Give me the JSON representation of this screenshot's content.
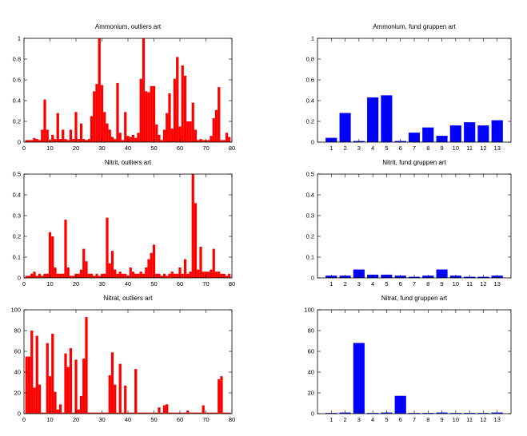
{
  "colors": {
    "outliers": "#ff0000",
    "groups": "#0000ff",
    "axis": "#000000",
    "background": "#ffffff"
  },
  "chart_data": [
    {
      "type": "bar",
      "title": "Ammonium, outliers art",
      "color": "#ff0000",
      "xlim": [
        0,
        80
      ],
      "ylim": [
        0,
        1
      ],
      "xticks": [
        0,
        10,
        20,
        30,
        40,
        50,
        60,
        70,
        80
      ],
      "yticks": [
        0,
        0.2,
        0.4,
        0.6,
        0.8,
        1
      ],
      "yticklabels": [
        "0",
        "0.2",
        "0.4",
        "0.6",
        "0.8",
        "1"
      ],
      "x": [
        1,
        2,
        3,
        4,
        5,
        6,
        7,
        8,
        9,
        10,
        11,
        12,
        13,
        14,
        15,
        16,
        17,
        18,
        19,
        20,
        21,
        22,
        23,
        24,
        25,
        26,
        27,
        28,
        29,
        30,
        31,
        32,
        33,
        34,
        35,
        36,
        37,
        38,
        39,
        40,
        41,
        42,
        43,
        44,
        45,
        46,
        47,
        48,
        49,
        50,
        51,
        52,
        53,
        54,
        55,
        56,
        57,
        58,
        59,
        60,
        61,
        62,
        63,
        64,
        65,
        66,
        67,
        68,
        69,
        70,
        71,
        72,
        73,
        74,
        75,
        76,
        77,
        78,
        79
      ],
      "values": [
        0.02,
        0.02,
        0.02,
        0.04,
        0.03,
        0.02,
        0.12,
        0.41,
        0.12,
        0.02,
        0.07,
        0.03,
        0.28,
        0.03,
        0.12,
        0.03,
        0.02,
        0.12,
        0.03,
        0.29,
        0.03,
        0.18,
        0.03,
        0.02,
        0.03,
        0.25,
        0.49,
        0.56,
        1.0,
        0.55,
        0.29,
        0.18,
        0.12,
        0.05,
        0.03,
        0.57,
        0.09,
        0.02,
        0.29,
        0.06,
        0.05,
        0.07,
        0.04,
        0.09,
        0.61,
        1.0,
        0.49,
        0.48,
        0.54,
        0.54,
        0.17,
        0.07,
        0.02,
        0.12,
        0.28,
        0.47,
        0.13,
        0.61,
        0.82,
        0.15,
        0.74,
        0.64,
        0.2,
        0.2,
        0.38,
        0.12,
        0.02,
        0.03,
        0.02,
        0.02,
        0.02,
        0.06,
        0.23,
        0.31,
        0.53,
        0.02,
        0.02,
        0.09,
        0.05
      ]
    },
    {
      "type": "bar",
      "title": "Ammonium, fund gruppen art",
      "color": "#0000ff",
      "categories": [
        "1",
        "2",
        "3",
        "4",
        "5",
        "6",
        "7",
        "8",
        "9",
        "10",
        "11",
        "12",
        "13"
      ],
      "xlim": [
        0,
        14
      ],
      "ylim": [
        0,
        1
      ],
      "yticks": [
        0,
        0.2,
        0.4,
        0.6,
        0.8,
        1
      ],
      "yticklabels": [
        "0",
        "0.2",
        "0.4",
        "0.6",
        "0.8",
        "1"
      ],
      "values": [
        0.04,
        0.28,
        0.01,
        0.43,
        0.45,
        0.01,
        0.09,
        0.14,
        0.06,
        0.16,
        0.19,
        0.16,
        0.21
      ]
    },
    {
      "type": "bar",
      "title": "Nitrit, outliers art",
      "color": "#ff0000",
      "xlim": [
        0,
        80
      ],
      "ylim": [
        0,
        0.5
      ],
      "xticks": [
        0,
        10,
        20,
        30,
        40,
        50,
        60,
        70,
        80
      ],
      "yticks": [
        0,
        0.1,
        0.2,
        0.3,
        0.4,
        0.5
      ],
      "yticklabels": [
        "0",
        "0.1",
        "0.2",
        "0.3",
        "0.4",
        "0.5"
      ],
      "x": [
        1,
        2,
        3,
        4,
        5,
        6,
        7,
        8,
        9,
        10,
        11,
        12,
        13,
        14,
        15,
        16,
        17,
        18,
        19,
        20,
        21,
        22,
        23,
        24,
        25,
        26,
        27,
        28,
        29,
        30,
        31,
        32,
        33,
        34,
        35,
        36,
        37,
        38,
        39,
        40,
        41,
        42,
        43,
        44,
        45,
        46,
        47,
        48,
        49,
        50,
        51,
        52,
        53,
        54,
        55,
        56,
        57,
        58,
        59,
        60,
        61,
        62,
        63,
        64,
        65,
        66,
        67,
        68,
        69,
        70,
        71,
        72,
        73,
        74,
        75,
        76,
        77,
        78,
        79
      ],
      "values": [
        0.01,
        0.01,
        0.02,
        0.03,
        0.01,
        0.02,
        0.01,
        0.02,
        0.02,
        0.22,
        0.2,
        0.05,
        0.02,
        0.02,
        0.02,
        0.28,
        0.05,
        0.01,
        0.01,
        0.02,
        0.02,
        0.04,
        0.14,
        0.08,
        0.02,
        0.02,
        0.01,
        0.02,
        0.01,
        0.02,
        0.02,
        0.29,
        0.07,
        0.13,
        0.04,
        0.02,
        0.03,
        0.02,
        0.02,
        0.01,
        0.05,
        0.03,
        0.02,
        0.02,
        0.03,
        0.02,
        0.05,
        0.09,
        0.12,
        0.16,
        0.02,
        0.02,
        0.01,
        0.02,
        0.01,
        0.02,
        0.03,
        0.02,
        0.02,
        0.05,
        0.02,
        0.09,
        0.02,
        0.03,
        0.5,
        0.36,
        0.04,
        0.15,
        0.03,
        0.03,
        0.03,
        0.04,
        0.14,
        0.03,
        0.03,
        0.02,
        0.02,
        0.01,
        0.02
      ]
    },
    {
      "type": "bar",
      "title": "Nitrit, fund gruppen art",
      "color": "#0000ff",
      "categories": [
        "1",
        "2",
        "3",
        "4",
        "5",
        "6",
        "7",
        "8",
        "9",
        "10",
        "11",
        "12",
        "13"
      ],
      "xlim": [
        0,
        14
      ],
      "ylim": [
        0,
        0.5
      ],
      "yticks": [
        0,
        0.1,
        0.2,
        0.3,
        0.4,
        0.5
      ],
      "yticklabels": [
        "0",
        "0.1",
        "0.2",
        "0.3",
        "0.4",
        "0.5"
      ],
      "values": [
        0.01,
        0.01,
        0.04,
        0.015,
        0.015,
        0.01,
        0.005,
        0.01,
        0.04,
        0.01,
        0.005,
        0.005,
        0.01
      ]
    },
    {
      "type": "bar",
      "title": "Nitrat, outliers art",
      "color": "#ff0000",
      "xlim": [
        0,
        80
      ],
      "ylim": [
        0,
        100
      ],
      "xticks": [
        0,
        10,
        20,
        30,
        40,
        50,
        60,
        70,
        80
      ],
      "yticks": [
        0,
        20,
        40,
        60,
        80,
        100
      ],
      "yticklabels": [
        "0",
        "20",
        "40",
        "60",
        "80",
        "100"
      ],
      "x": [
        1,
        2,
        3,
        4,
        5,
        6,
        7,
        8,
        9,
        10,
        11,
        12,
        13,
        14,
        15,
        16,
        17,
        18,
        19,
        20,
        21,
        22,
        23,
        24,
        25,
        26,
        27,
        28,
        29,
        30,
        31,
        32,
        33,
        34,
        35,
        36,
        37,
        38,
        39,
        40,
        41,
        42,
        43,
        44,
        45,
        46,
        47,
        48,
        49,
        50,
        51,
        52,
        53,
        54,
        55,
        56,
        57,
        58,
        59,
        60,
        61,
        62,
        63,
        64,
        65,
        66,
        67,
        68,
        69,
        70,
        71,
        72,
        73,
        74,
        75,
        76,
        77,
        78,
        79
      ],
      "values": [
        55,
        55,
        80,
        25,
        75,
        28,
        1,
        1,
        68,
        36,
        77,
        21,
        4,
        9,
        1,
        58,
        45,
        63,
        1,
        52,
        4,
        17,
        53,
        93,
        1,
        1,
        1,
        1,
        1,
        1,
        1,
        1,
        37,
        59,
        28,
        1,
        48,
        1,
        27,
        1,
        1,
        1,
        43,
        1,
        1,
        1,
        1,
        1,
        1,
        1,
        1,
        6,
        1,
        8,
        9,
        1,
        1,
        1,
        1,
        1,
        1,
        1,
        3,
        1,
        1,
        1,
        1,
        1,
        8,
        1,
        1,
        1,
        1,
        1,
        33,
        36,
        1,
        1,
        1
      ]
    },
    {
      "type": "bar",
      "title": "Nitrat, fund gruppen art",
      "color": "#0000ff",
      "categories": [
        "1",
        "2",
        "3",
        "4",
        "5",
        "6",
        "7",
        "8",
        "9",
        "10",
        "11",
        "12",
        "13"
      ],
      "xlim": [
        0,
        14
      ],
      "ylim": [
        0,
        100
      ],
      "yticks": [
        0,
        20,
        40,
        60,
        80,
        100
      ],
      "yticklabels": [
        "0",
        "20",
        "40",
        "60",
        "80",
        "100"
      ],
      "values": [
        0.5,
        1,
        68,
        0.5,
        1,
        17,
        0.5,
        0.5,
        1,
        0.5,
        0.5,
        0.5,
        1
      ]
    }
  ]
}
